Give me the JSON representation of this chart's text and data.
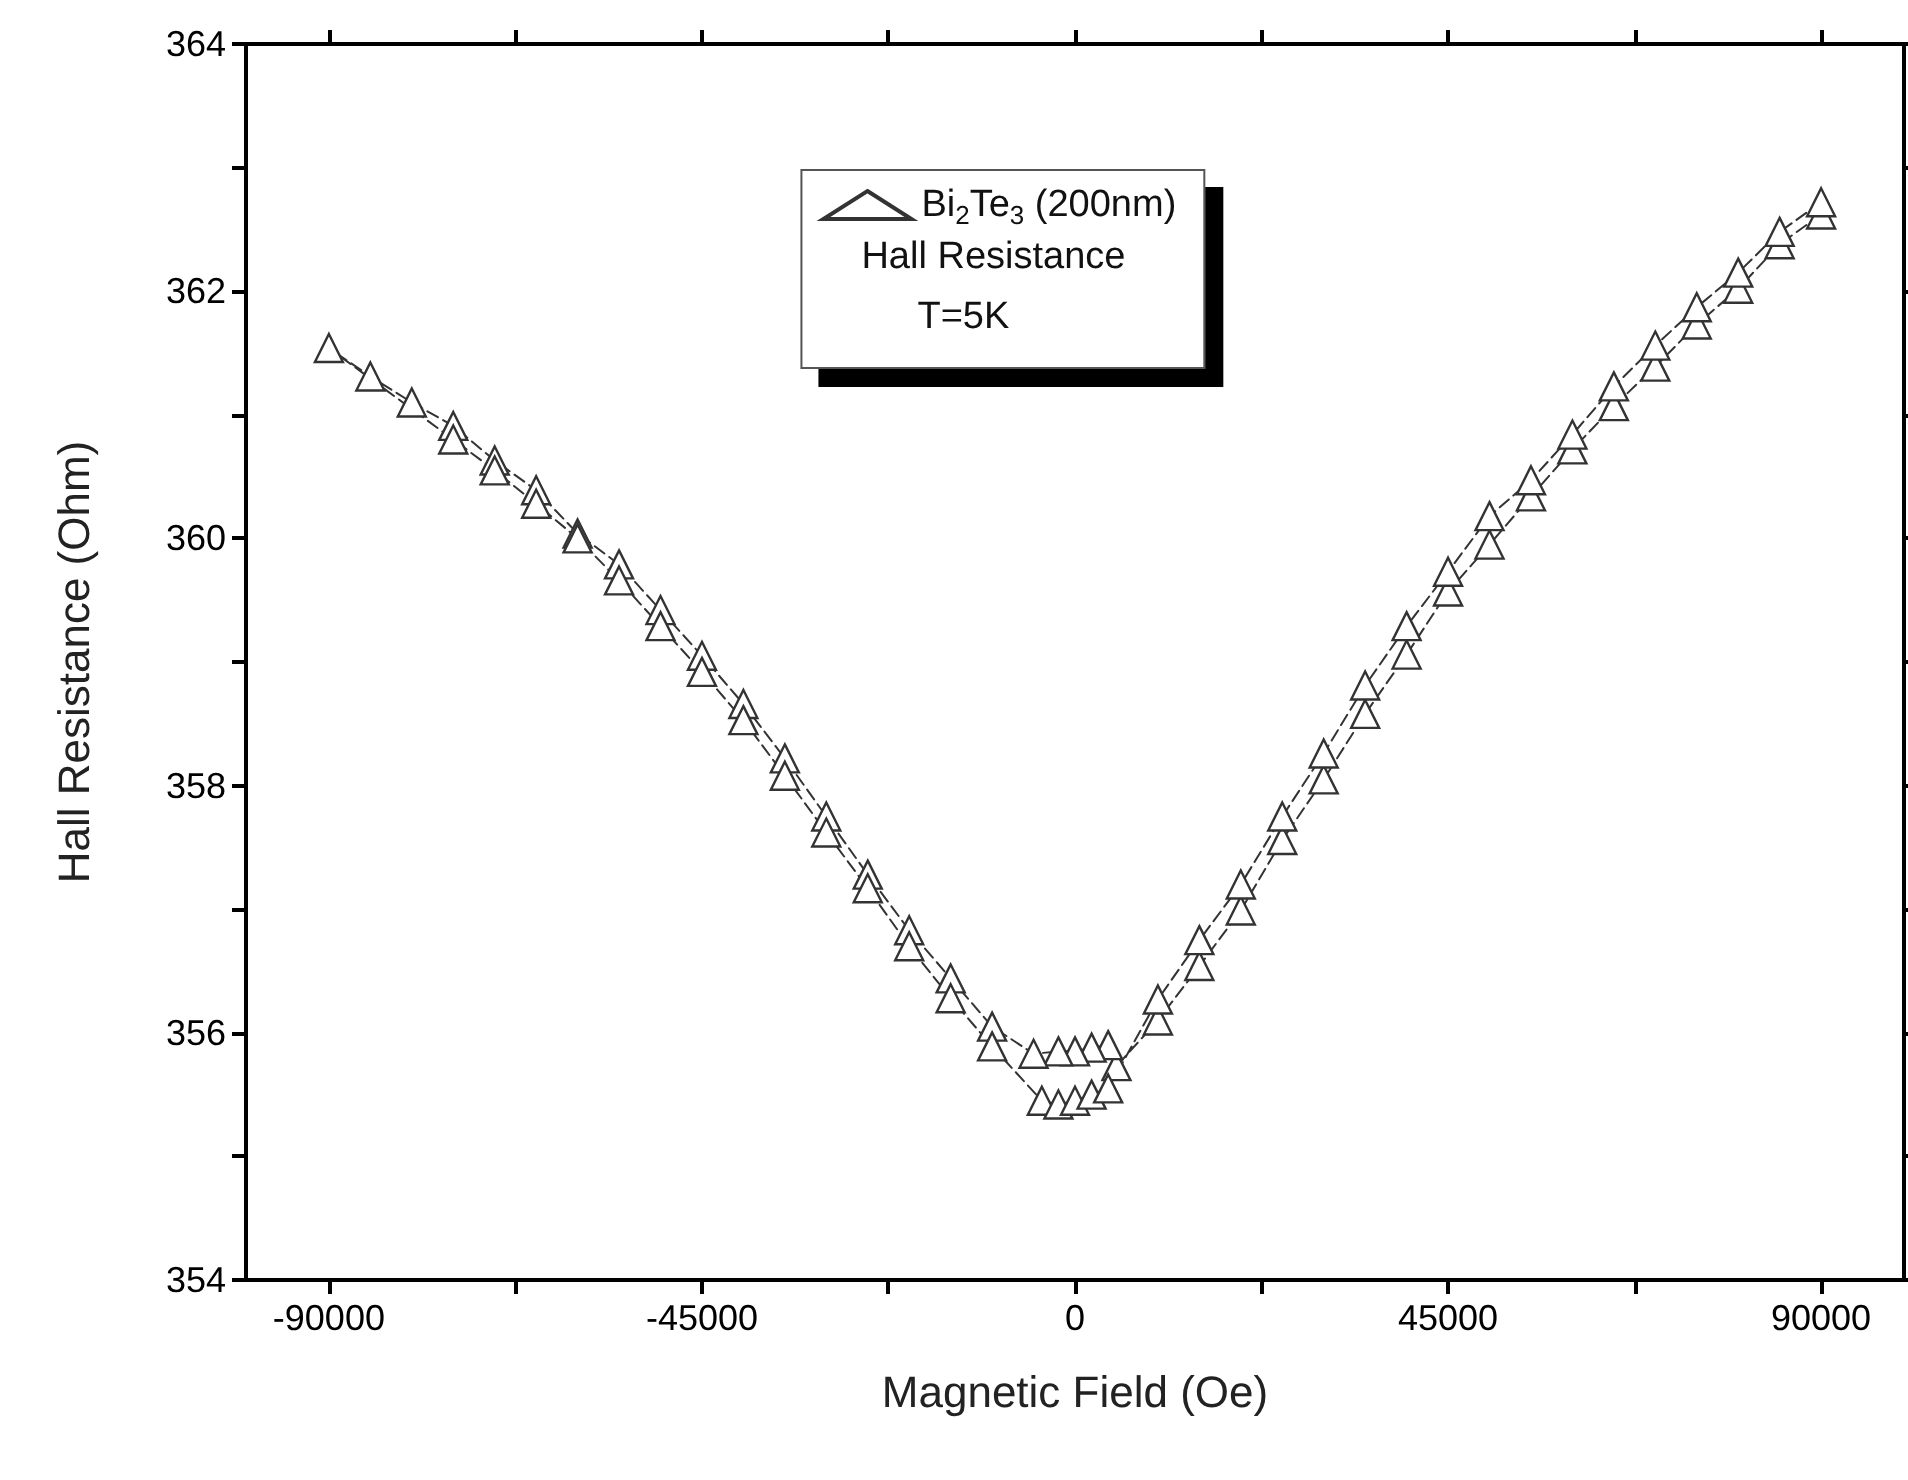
{
  "chart_data": {
    "type": "line",
    "xlabel": "Magnetic Field (Oe)",
    "ylabel": "Hall Resistance (Ohm)",
    "xlim": [
      -100000,
      100000
    ],
    "xticks": [
      -90000,
      {
        "value": -67500,
        "label": null
      },
      -45000,
      {
        "value": -22500,
        "label": null
      },
      0,
      {
        "value": 22500,
        "label": null
      },
      45000,
      {
        "value": 67500,
        "label": null
      },
      90000
    ],
    "ylim": [
      354,
      364
    ],
    "yticks": [
      354,
      {
        "value": 355,
        "label": null
      },
      356,
      {
        "value": 357,
        "label": null
      },
      358,
      {
        "value": 359,
        "label": null
      },
      360,
      {
        "value": 361,
        "label": null
      },
      362,
      {
        "value": 363,
        "label": null
      },
      364
    ],
    "grid": false,
    "legend": "top",
    "marker": "triangle",
    "line_style": "dashed",
    "annotations": [
      "Hall Resistance",
      "T=5K"
    ],
    "series": [
      {
        "name": "Bi$_{2}$Te$_{3}$ (200nm)",
        "color": "#333333",
        "x": [
          90000,
          85000,
          80000,
          75000,
          70000,
          65000,
          60000,
          55000,
          50000,
          45000,
          40000,
          35000,
          30000,
          25000,
          20000,
          15000,
          10000,
          5000,
          4000,
          2000,
          0,
          -2000,
          -5000,
          -10000,
          -15000,
          -20000,
          -25000,
          -30000,
          -35000,
          -40000,
          -45000,
          -50000,
          -55000,
          -60000,
          -65000,
          -70000,
          -75000,
          -80000,
          -85000,
          -90000,
          -75000,
          -70000,
          -65000,
          -60000,
          -55000,
          -50000,
          -45000,
          -40000,
          -35000,
          -30000,
          -25000,
          -20000,
          -15000,
          -10000,
          -4000,
          -2000,
          0,
          2000,
          4000,
          10000,
          15000,
          20000,
          25000,
          30000,
          35000,
          40000,
          45000,
          50000,
          55000,
          60000,
          65000,
          70000,
          75000,
          80000,
          85000,
          90000
        ],
        "values": [
          362.62,
          362.38,
          362.02,
          361.73,
          361.39,
          361.07,
          360.72,
          360.34,
          359.95,
          359.57,
          359.06,
          358.58,
          358.05,
          357.56,
          356.99,
          356.54,
          356.1,
          355.73,
          355.9,
          355.88,
          355.85,
          355.85,
          355.83,
          356.05,
          356.44,
          356.83,
          357.28,
          357.75,
          358.22,
          358.66,
          359.05,
          359.42,
          359.79,
          360.04,
          360.39,
          360.63,
          360.91,
          361.1,
          361.31,
          361.54,
          360.8,
          360.55,
          360.28,
          360.0,
          359.66,
          359.29,
          358.92,
          358.53,
          358.08,
          357.62,
          357.17,
          356.7,
          356.28,
          355.89,
          355.45,
          355.42,
          355.45,
          355.5,
          355.55,
          356.27,
          356.75,
          357.2,
          357.75,
          358.26,
          358.81,
          359.29,
          359.73,
          360.18,
          360.47,
          360.84,
          361.23,
          361.56,
          361.87,
          362.15,
          362.48,
          362.72
        ]
      }
    ]
  }
}
